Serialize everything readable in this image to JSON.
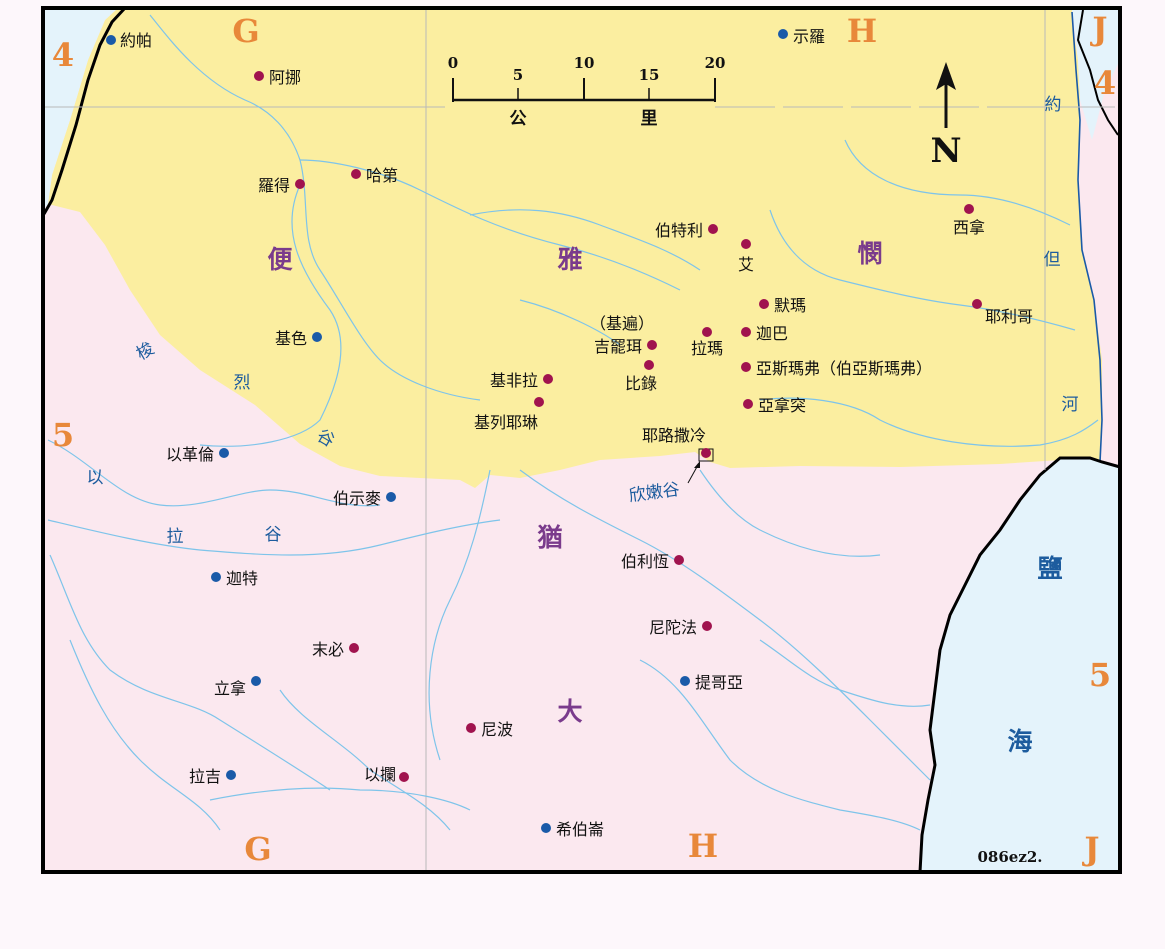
{
  "map_code": "086ez2.",
  "north_label": "N",
  "scale_bar": {
    "ticks": [
      "0",
      "5",
      "10",
      "15",
      "20"
    ],
    "unit_left": "公",
    "unit_right": "里"
  },
  "grid_labels": {
    "top": [
      "G",
      "H",
      "J"
    ],
    "bottom": [
      "G",
      "H",
      "J"
    ],
    "left": [
      "4",
      "5"
    ],
    "right": [
      "4",
      "5"
    ]
  },
  "regions": {
    "benjamin": [
      "便",
      "雅",
      "憫"
    ],
    "judah": [
      "猶",
      "大"
    ],
    "dead_sea": [
      "鹽",
      "海"
    ]
  },
  "water_labels": {
    "sorek_valley": [
      "梭",
      "烈",
      "谷"
    ],
    "elah_valley": [
      "以",
      "拉",
      "谷"
    ],
    "hinnom_valley": "欣嫩谷",
    "jordan_river": [
      "約",
      "但",
      "河"
    ]
  },
  "places": {
    "joppa": "約帕",
    "ono": "阿挪",
    "lod": "羅得",
    "hadid": "哈第",
    "gezer": "基色",
    "shiloh": "示羅",
    "bethel": "伯特利",
    "ai": "艾",
    "jericho": "耶利哥",
    "jeshanah": "西拿",
    "michmash": "默瑪",
    "geba": "迦巴",
    "ramah": "拉瑪",
    "gibeon_paren": "（基遍）",
    "gibeon": "吉罷珥",
    "beeroth": "比錄",
    "kephirah": "基非拉",
    "kiriath_jearim": "基列耶琳",
    "azmaveth": "亞斯瑪弗（伯亞斯瑪弗）",
    "anathoth": "亞拿突",
    "jerusalem": "耶路撒冷",
    "eglon": "以革倫",
    "beth_shemesh": "伯示麥",
    "gath": "迦特",
    "bethlehem": "伯利恆",
    "netophah": "尼陀法",
    "tekoa": "提哥亞",
    "mareshah": "末必",
    "libnah": "立拿",
    "nebo": "尼波",
    "lachish": "拉吉",
    "adullam": "以攔",
    "hebron": "希伯崙"
  },
  "colors": {
    "benjamin_fill": "#fbeea0",
    "judah_fill": "#fbe8ef",
    "sea_fill": "#e4f3fb",
    "river": "#7ec4ea",
    "marker_primary": "#a0134e",
    "marker_secondary": "#1a5aa8",
    "grid_letter": "#e8883a",
    "region_label": "#7a3b8c",
    "water_label": "#1d5c9e"
  }
}
